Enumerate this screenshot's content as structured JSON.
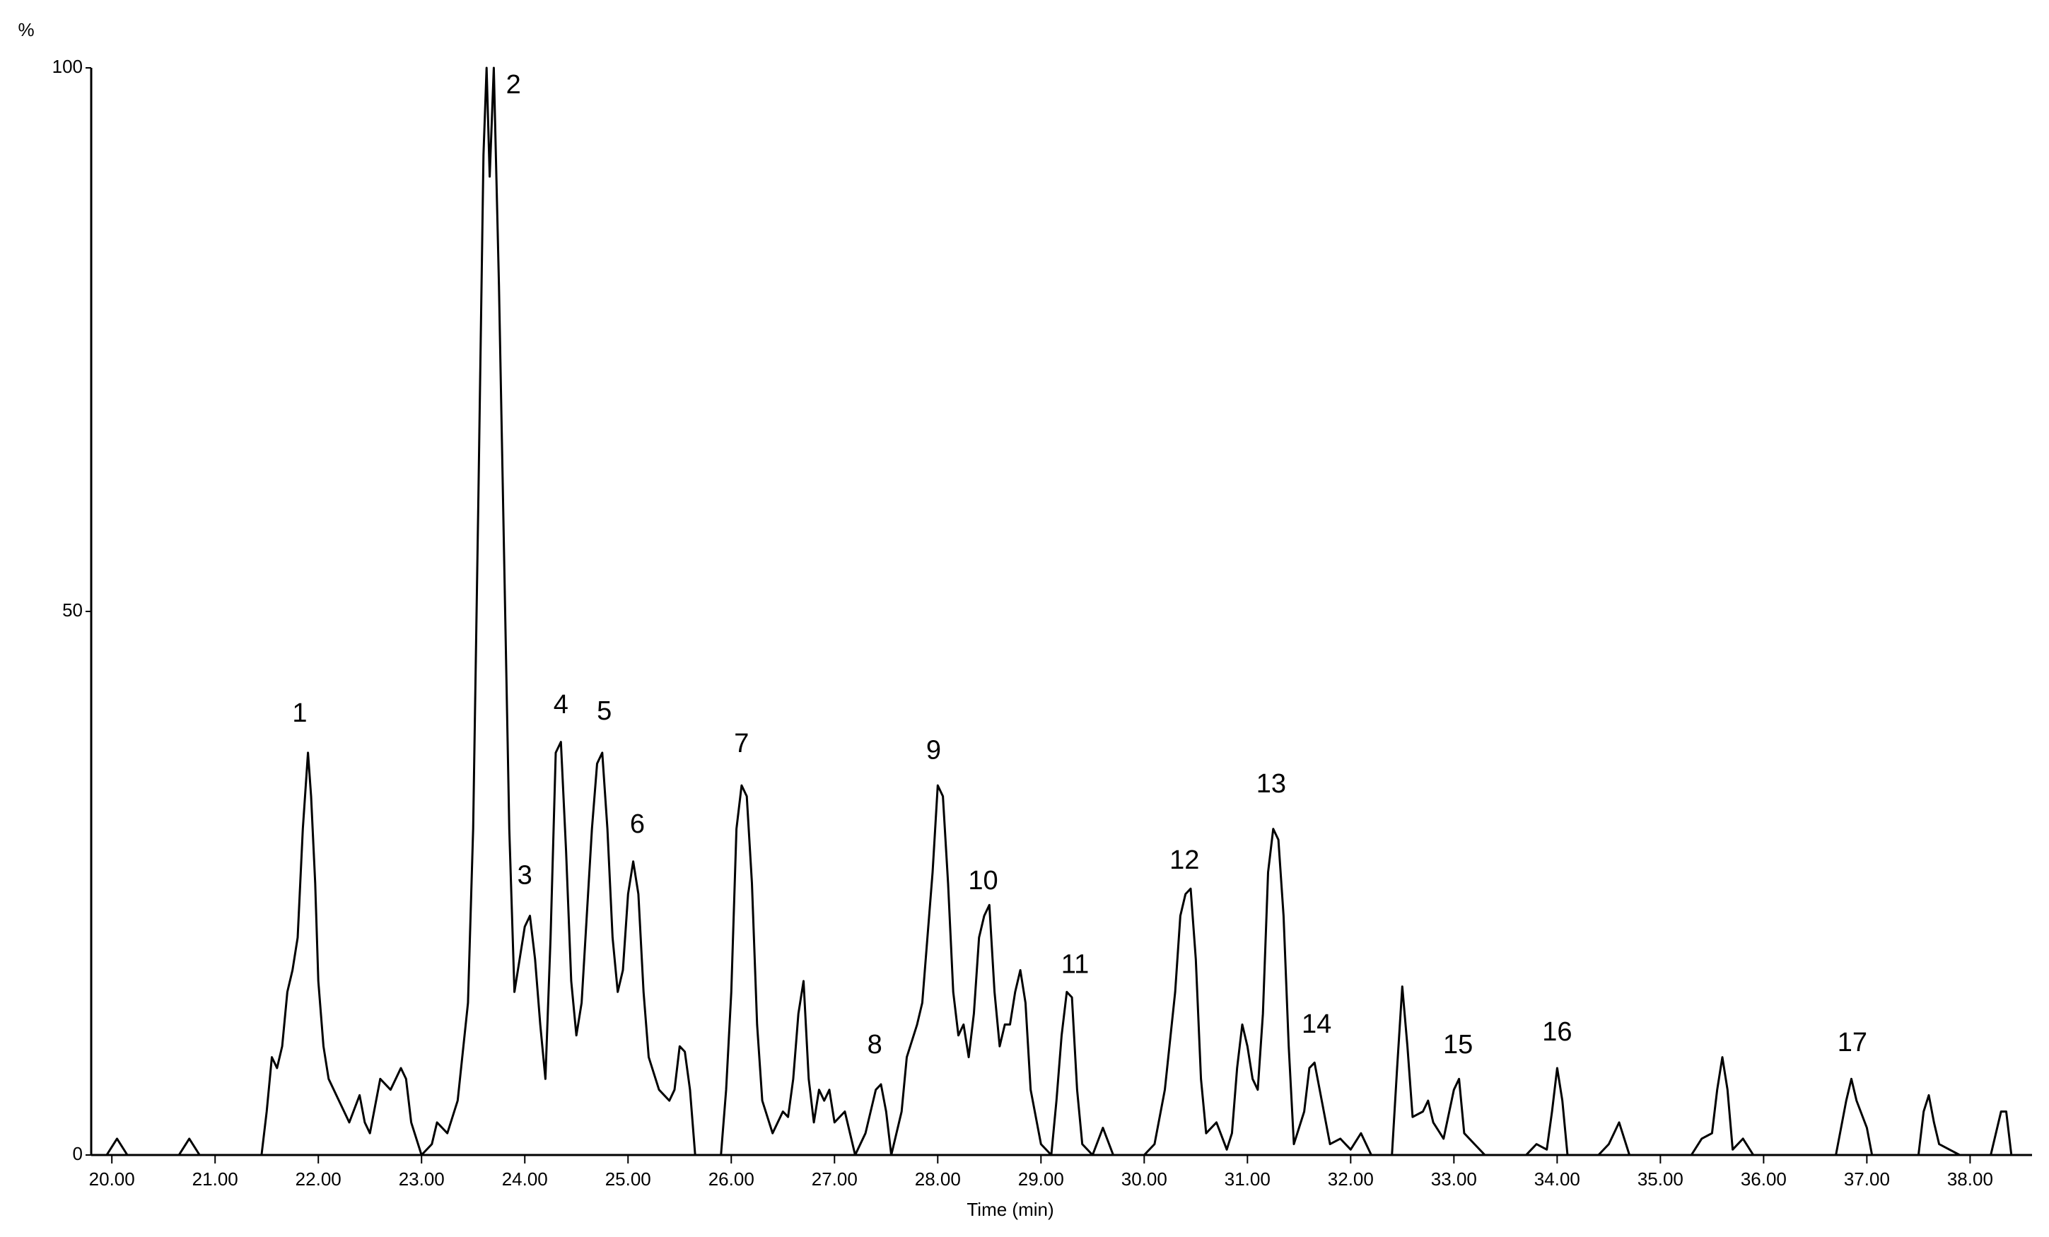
{
  "chart_data": {
    "type": "line",
    "y_label": "%",
    "x_label": "Time (min)",
    "xlim": [
      19.8,
      38.6
    ],
    "ylim": [
      0,
      100
    ],
    "xticks": [
      {
        "value": 20,
        "label": "20.00"
      },
      {
        "value": 21,
        "label": "21.00"
      },
      {
        "value": 22,
        "label": "22.00"
      },
      {
        "value": 23,
        "label": "23.00"
      },
      {
        "value": 24,
        "label": "24.00"
      },
      {
        "value": 25,
        "label": "25.00"
      },
      {
        "value": 26,
        "label": "26.00"
      },
      {
        "value": 27,
        "label": "27.00"
      },
      {
        "value": 28,
        "label": "28.00"
      },
      {
        "value": 29,
        "label": "29.00"
      },
      {
        "value": 30,
        "label": "30.00"
      },
      {
        "value": 31,
        "label": "31.00"
      },
      {
        "value": 32,
        "label": "32.00"
      },
      {
        "value": 33,
        "label": "33.00"
      },
      {
        "value": 34,
        "label": "34.00"
      },
      {
        "value": 35,
        "label": "35.00"
      },
      {
        "value": 36,
        "label": "36.00"
      },
      {
        "value": 37,
        "label": "37.00"
      },
      {
        "value": 38,
        "label": "38.00"
      }
    ],
    "yticks": [
      0,
      50,
      100
    ],
    "x": [
      19.8,
      19.95,
      20.05,
      20.15,
      20.65,
      20.75,
      20.85,
      21.45,
      21.5,
      21.55,
      21.6,
      21.65,
      21.7,
      21.75,
      21.8,
      21.85,
      21.9,
      21.93,
      21.97,
      22.0,
      22.05,
      22.1,
      22.2,
      22.3,
      22.4,
      22.45,
      22.5,
      22.6,
      22.7,
      22.8,
      22.85,
      22.9,
      23.0,
      23.1,
      23.15,
      23.25,
      23.35,
      23.45,
      23.5,
      23.55,
      23.6,
      23.63,
      23.66,
      23.7,
      23.75,
      23.8,
      23.85,
      23.9,
      23.95,
      24.0,
      24.05,
      24.1,
      24.15,
      24.2,
      24.25,
      24.3,
      24.35,
      24.4,
      24.45,
      24.5,
      24.55,
      24.6,
      24.65,
      24.7,
      24.75,
      24.8,
      24.85,
      24.9,
      24.95,
      25.0,
      25.05,
      25.1,
      25.15,
      25.2,
      25.3,
      25.4,
      25.45,
      25.5,
      25.55,
      25.6,
      25.65,
      25.9,
      25.95,
      26.0,
      26.05,
      26.1,
      26.15,
      26.2,
      26.25,
      26.3,
      26.4,
      26.5,
      26.55,
      26.6,
      26.65,
      26.7,
      26.75,
      26.8,
      26.85,
      26.9,
      26.95,
      27.0,
      27.1,
      27.2,
      27.3,
      27.4,
      27.45,
      27.5,
      27.55,
      27.65,
      27.7,
      27.8,
      27.85,
      27.95,
      28.0,
      28.05,
      28.1,
      28.15,
      28.2,
      28.25,
      28.3,
      28.35,
      28.4,
      28.45,
      28.5,
      28.55,
      28.6,
      28.65,
      28.7,
      28.75,
      28.8,
      28.85,
      28.9,
      29.0,
      29.1,
      29.15,
      29.2,
      29.25,
      29.3,
      29.35,
      29.4,
      29.5,
      29.6,
      29.7,
      30.0,
      30.1,
      30.2,
      30.3,
      30.35,
      30.4,
      30.45,
      30.5,
      30.55,
      30.6,
      30.7,
      30.8,
      30.85,
      30.9,
      30.95,
      31.0,
      31.05,
      31.1,
      31.15,
      31.2,
      31.25,
      31.3,
      31.35,
      31.4,
      31.45,
      31.55,
      31.6,
      31.65,
      31.7,
      31.8,
      31.9,
      32.0,
      32.1,
      32.2,
      32.4,
      32.45,
      32.5,
      32.55,
      32.6,
      32.7,
      32.75,
      32.8,
      32.9,
      33.0,
      33.05,
      33.1,
      33.2,
      33.3,
      33.7,
      33.8,
      33.9,
      33.95,
      34.0,
      34.05,
      34.1,
      34.4,
      34.5,
      34.6,
      34.7,
      35.3,
      35.4,
      35.5,
      35.55,
      35.6,
      35.65,
      35.7,
      35.8,
      35.9,
      36.7,
      36.8,
      36.85,
      36.9,
      37.0,
      37.05,
      37.5,
      37.55,
      37.6,
      37.65,
      37.7,
      37.8,
      37.9,
      38.2,
      38.3,
      38.35,
      38.4,
      38.6
    ],
    "series": [
      {
        "color": "#000000",
        "values": [
          0,
          0,
          1.5,
          0,
          0,
          1.5,
          0,
          0,
          4,
          9,
          8,
          10,
          15,
          17,
          20,
          30,
          37,
          33,
          25,
          16,
          10,
          7,
          5,
          3,
          5.5,
          3,
          2,
          7,
          6,
          8,
          7,
          3,
          0,
          1,
          3,
          2,
          5,
          14,
          30,
          60,
          92,
          100,
          90,
          100,
          80,
          55,
          30,
          15,
          18,
          21,
          22,
          18,
          12,
          7,
          20,
          37,
          38,
          28,
          16,
          11,
          14,
          22,
          30,
          36,
          37,
          30,
          20,
          15,
          17,
          24,
          27,
          24,
          15,
          9,
          6,
          5,
          6,
          10,
          9.5,
          6,
          0,
          0,
          6,
          15,
          30,
          34,
          33,
          25,
          12,
          5,
          2,
          4,
          3.5,
          7,
          13,
          16,
          7,
          3,
          6,
          5,
          6,
          3,
          4,
          0,
          2,
          6,
          6.5,
          4,
          0,
          4,
          9,
          12,
          14,
          26,
          34,
          33,
          25,
          15,
          11,
          12,
          9,
          13,
          20,
          22,
          23,
          15,
          10,
          12,
          12,
          15,
          17,
          14,
          6,
          1,
          0,
          5,
          11,
          15,
          14.5,
          6,
          1,
          0,
          2.5,
          0,
          0,
          1,
          6,
          15,
          22,
          24,
          24.5,
          18,
          7,
          2,
          3,
          0.5,
          2,
          8,
          12,
          10,
          7,
          6,
          13,
          26,
          30,
          29,
          22,
          10,
          1,
          4,
          8,
          8.5,
          6,
          1,
          1.5,
          0.5,
          2,
          0,
          0,
          8,
          15.5,
          10,
          3.5,
          4,
          5,
          3,
          1.5,
          6,
          7,
          2,
          1,
          0,
          0,
          1,
          0.5,
          4,
          8,
          5,
          0,
          0,
          1,
          3,
          0,
          0,
          1.5,
          2,
          6,
          9,
          6,
          0.5,
          1.5,
          0,
          0,
          5,
          7,
          5,
          2.5,
          0,
          0,
          4,
          5.5,
          3,
          1,
          0.5,
          0,
          0,
          4,
          4,
          0,
          0
        ]
      }
    ],
    "annotations": [
      {
        "text": "1",
        "x": 21.82,
        "y": 40.5
      },
      {
        "text": "2",
        "x": 23.89,
        "y": 98.3
      },
      {
        "text": "3",
        "x": 24.0,
        "y": 25.6
      },
      {
        "text": "4",
        "x": 24.35,
        "y": 41.3
      },
      {
        "text": "5",
        "x": 24.77,
        "y": 40.7
      },
      {
        "text": "6",
        "x": 25.09,
        "y": 30.3
      },
      {
        "text": "7",
        "x": 26.1,
        "y": 37.7
      },
      {
        "text": "8",
        "x": 27.39,
        "y": 10.0
      },
      {
        "text": "9",
        "x": 27.96,
        "y": 37.1
      },
      {
        "text": "10",
        "x": 28.44,
        "y": 25.1
      },
      {
        "text": "11",
        "x": 29.33,
        "y": 17.4
      },
      {
        "text": "12",
        "x": 30.39,
        "y": 27.0
      },
      {
        "text": "13",
        "x": 31.23,
        "y": 34.0
      },
      {
        "text": "14",
        "x": 31.67,
        "y": 11.9
      },
      {
        "text": "15",
        "x": 33.04,
        "y": 10.0
      },
      {
        "text": "16",
        "x": 34.0,
        "y": 11.2
      },
      {
        "text": "17",
        "x": 36.86,
        "y": 10.2
      }
    ]
  }
}
